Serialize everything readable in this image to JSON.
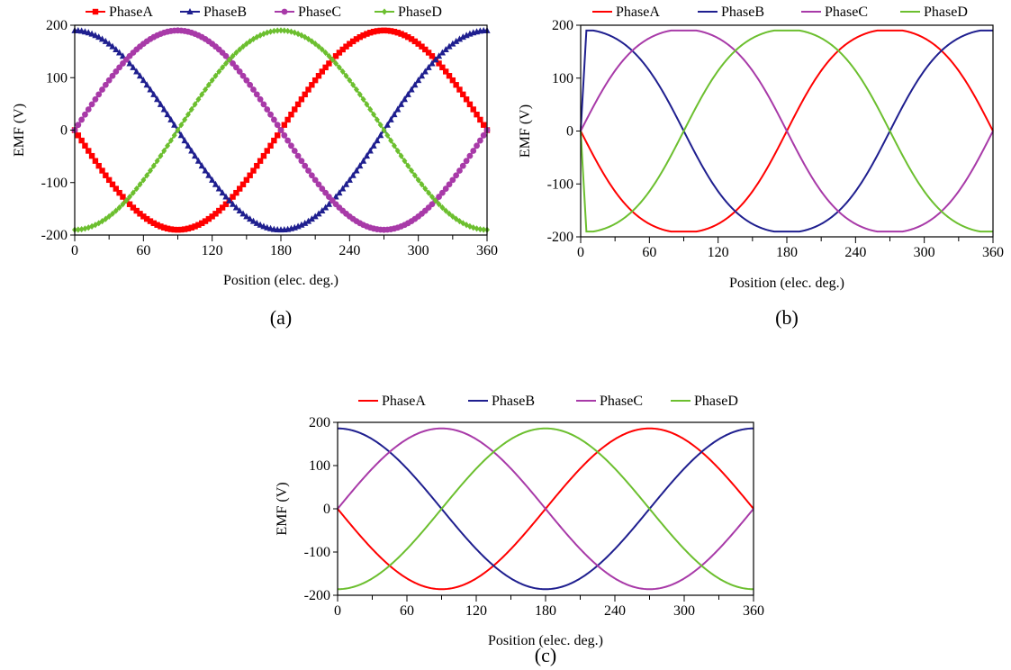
{
  "figure": {
    "panels": [
      {
        "id": "a",
        "caption": "(a)"
      },
      {
        "id": "b",
        "caption": "(b)"
      },
      {
        "id": "c",
        "caption": "(c)"
      }
    ]
  },
  "colors": {
    "PhaseA": "#ff0000",
    "PhaseB": "#1f1f8f",
    "PhaseC": "#a83aa8",
    "PhaseD": "#6cbf2f"
  },
  "chart_data": [
    {
      "type": "line",
      "caption": "(a)",
      "xlabel": "Position (elec. deg.)",
      "ylabel": "EMF (V)",
      "xlim": [
        0,
        360
      ],
      "ylim": [
        -200,
        200
      ],
      "xticks": [
        0,
        60,
        120,
        180,
        240,
        300,
        360
      ],
      "yticks": [
        -200,
        -100,
        0,
        100,
        200
      ],
      "grid": false,
      "legend": "top",
      "marker_styles": {
        "PhaseA": "square",
        "PhaseB": "triangle",
        "PhaseC": "circle",
        "PhaseD": "diamond"
      },
      "series": [
        {
          "name": "PhaseA",
          "amplitude": 190,
          "phase_deg": 0,
          "sign": -1,
          "x": [
            0,
            30,
            60,
            90,
            120,
            150,
            180,
            210,
            240,
            270,
            300,
            330,
            360
          ],
          "y": [
            0,
            -95,
            -165,
            -190,
            -165,
            -95,
            0,
            95,
            165,
            190,
            165,
            95,
            0
          ]
        },
        {
          "name": "PhaseB",
          "amplitude": 190,
          "phase_deg": 90,
          "sign": -1,
          "x": [
            0,
            30,
            60,
            90,
            120,
            150,
            180,
            210,
            240,
            270,
            300,
            330,
            360
          ],
          "y": [
            190,
            165,
            95,
            0,
            -95,
            -165,
            -190,
            -165,
            -95,
            0,
            95,
            165,
            190
          ]
        },
        {
          "name": "PhaseC",
          "amplitude": 190,
          "phase_deg": 180,
          "sign": -1,
          "x": [
            0,
            30,
            60,
            90,
            120,
            150,
            180,
            210,
            240,
            270,
            300,
            330,
            360
          ],
          "y": [
            0,
            95,
            165,
            190,
            165,
            95,
            0,
            -95,
            -165,
            -190,
            -165,
            -95,
            0
          ]
        },
        {
          "name": "PhaseD",
          "amplitude": 190,
          "phase_deg": 270,
          "sign": -1,
          "x": [
            0,
            30,
            60,
            90,
            120,
            150,
            180,
            210,
            240,
            270,
            300,
            330,
            360
          ],
          "y": [
            -190,
            -165,
            -95,
            0,
            95,
            165,
            190,
            165,
            95,
            0,
            -95,
            -165,
            -190
          ]
        }
      ]
    },
    {
      "type": "line",
      "caption": "(b)",
      "xlabel": "Position (elec. deg.)",
      "ylabel": "EMF (V)",
      "xlim": [
        0,
        360
      ],
      "ylim": [
        -200,
        200
      ],
      "xticks": [
        0,
        60,
        120,
        180,
        240,
        300,
        360
      ],
      "yticks": [
        -200,
        -100,
        0,
        100,
        200
      ],
      "grid": false,
      "legend": "top",
      "series": [
        {
          "name": "PhaseA",
          "amplitude": 190,
          "phase_deg": 0,
          "sign": -1,
          "flatness": 0.28,
          "x": [
            0,
            30,
            60,
            90,
            120,
            150,
            180,
            210,
            240,
            270,
            300,
            330,
            360
          ],
          "y": [
            0,
            -115,
            -180,
            -190,
            -180,
            -115,
            0,
            115,
            180,
            190,
            180,
            115,
            0
          ]
        },
        {
          "name": "PhaseB",
          "amplitude": 190,
          "phase_deg": 90,
          "sign": -1,
          "flatness": 0.28,
          "x": [
            0,
            5,
            30,
            60,
            90,
            120,
            150,
            180,
            210,
            240,
            270,
            300,
            330,
            360
          ],
          "y": [
            0,
            190,
            180,
            115,
            0,
            -115,
            -180,
            -190,
            -180,
            -115,
            0,
            115,
            180,
            190
          ]
        },
        {
          "name": "PhaseC",
          "amplitude": 190,
          "phase_deg": 180,
          "sign": -1,
          "flatness": 0.28,
          "x": [
            0,
            30,
            60,
            90,
            120,
            150,
            180,
            210,
            240,
            270,
            300,
            330,
            360
          ],
          "y": [
            0,
            115,
            180,
            190,
            180,
            115,
            0,
            -115,
            -180,
            -190,
            -180,
            -115,
            0
          ]
        },
        {
          "name": "PhaseD",
          "amplitude": 190,
          "phase_deg": 270,
          "sign": -1,
          "flatness": 0.28,
          "x": [
            0,
            5,
            30,
            60,
            90,
            120,
            150,
            180,
            210,
            240,
            270,
            300,
            330,
            360
          ],
          "y": [
            0,
            -190,
            -180,
            -115,
            0,
            115,
            180,
            190,
            180,
            115,
            0,
            -115,
            -180,
            -190
          ]
        }
      ]
    },
    {
      "type": "line",
      "caption": "(c)",
      "xlabel": "Position (elec. deg.)",
      "ylabel": "EMF (V)",
      "xlim": [
        0,
        360
      ],
      "ylim": [
        -200,
        200
      ],
      "xticks": [
        0,
        60,
        120,
        180,
        240,
        300,
        360
      ],
      "yticks": [
        -200,
        -100,
        0,
        100,
        200
      ],
      "grid": false,
      "legend": "top",
      "series": [
        {
          "name": "PhaseA",
          "amplitude": 186,
          "phase_deg": 0,
          "sign": -1,
          "x": [
            0,
            30,
            60,
            90,
            120,
            150,
            180,
            210,
            240,
            270,
            300,
            330,
            360
          ],
          "y": [
            0,
            -100,
            -165,
            -186,
            -165,
            -100,
            0,
            100,
            165,
            186,
            165,
            100,
            0
          ]
        },
        {
          "name": "PhaseB",
          "amplitude": 186,
          "phase_deg": 90,
          "sign": -1,
          "x": [
            0,
            30,
            60,
            90,
            120,
            150,
            180,
            210,
            240,
            270,
            300,
            330,
            360
          ],
          "y": [
            186,
            165,
            100,
            0,
            -100,
            -165,
            -186,
            -165,
            -100,
            0,
            100,
            165,
            186
          ]
        },
        {
          "name": "PhaseC",
          "amplitude": 186,
          "phase_deg": 180,
          "sign": -1,
          "x": [
            0,
            30,
            60,
            90,
            120,
            150,
            180,
            210,
            240,
            270,
            300,
            330,
            360
          ],
          "y": [
            0,
            100,
            165,
            186,
            165,
            100,
            0,
            -100,
            -165,
            -186,
            -165,
            -100,
            0
          ]
        },
        {
          "name": "PhaseD",
          "amplitude": 186,
          "phase_deg": 270,
          "sign": -1,
          "x": [
            0,
            30,
            60,
            90,
            120,
            150,
            180,
            210,
            240,
            270,
            300,
            330,
            360
          ],
          "y": [
            -186,
            -165,
            -100,
            0,
            100,
            165,
            186,
            165,
            100,
            0,
            -100,
            -165,
            -186
          ]
        }
      ]
    }
  ]
}
